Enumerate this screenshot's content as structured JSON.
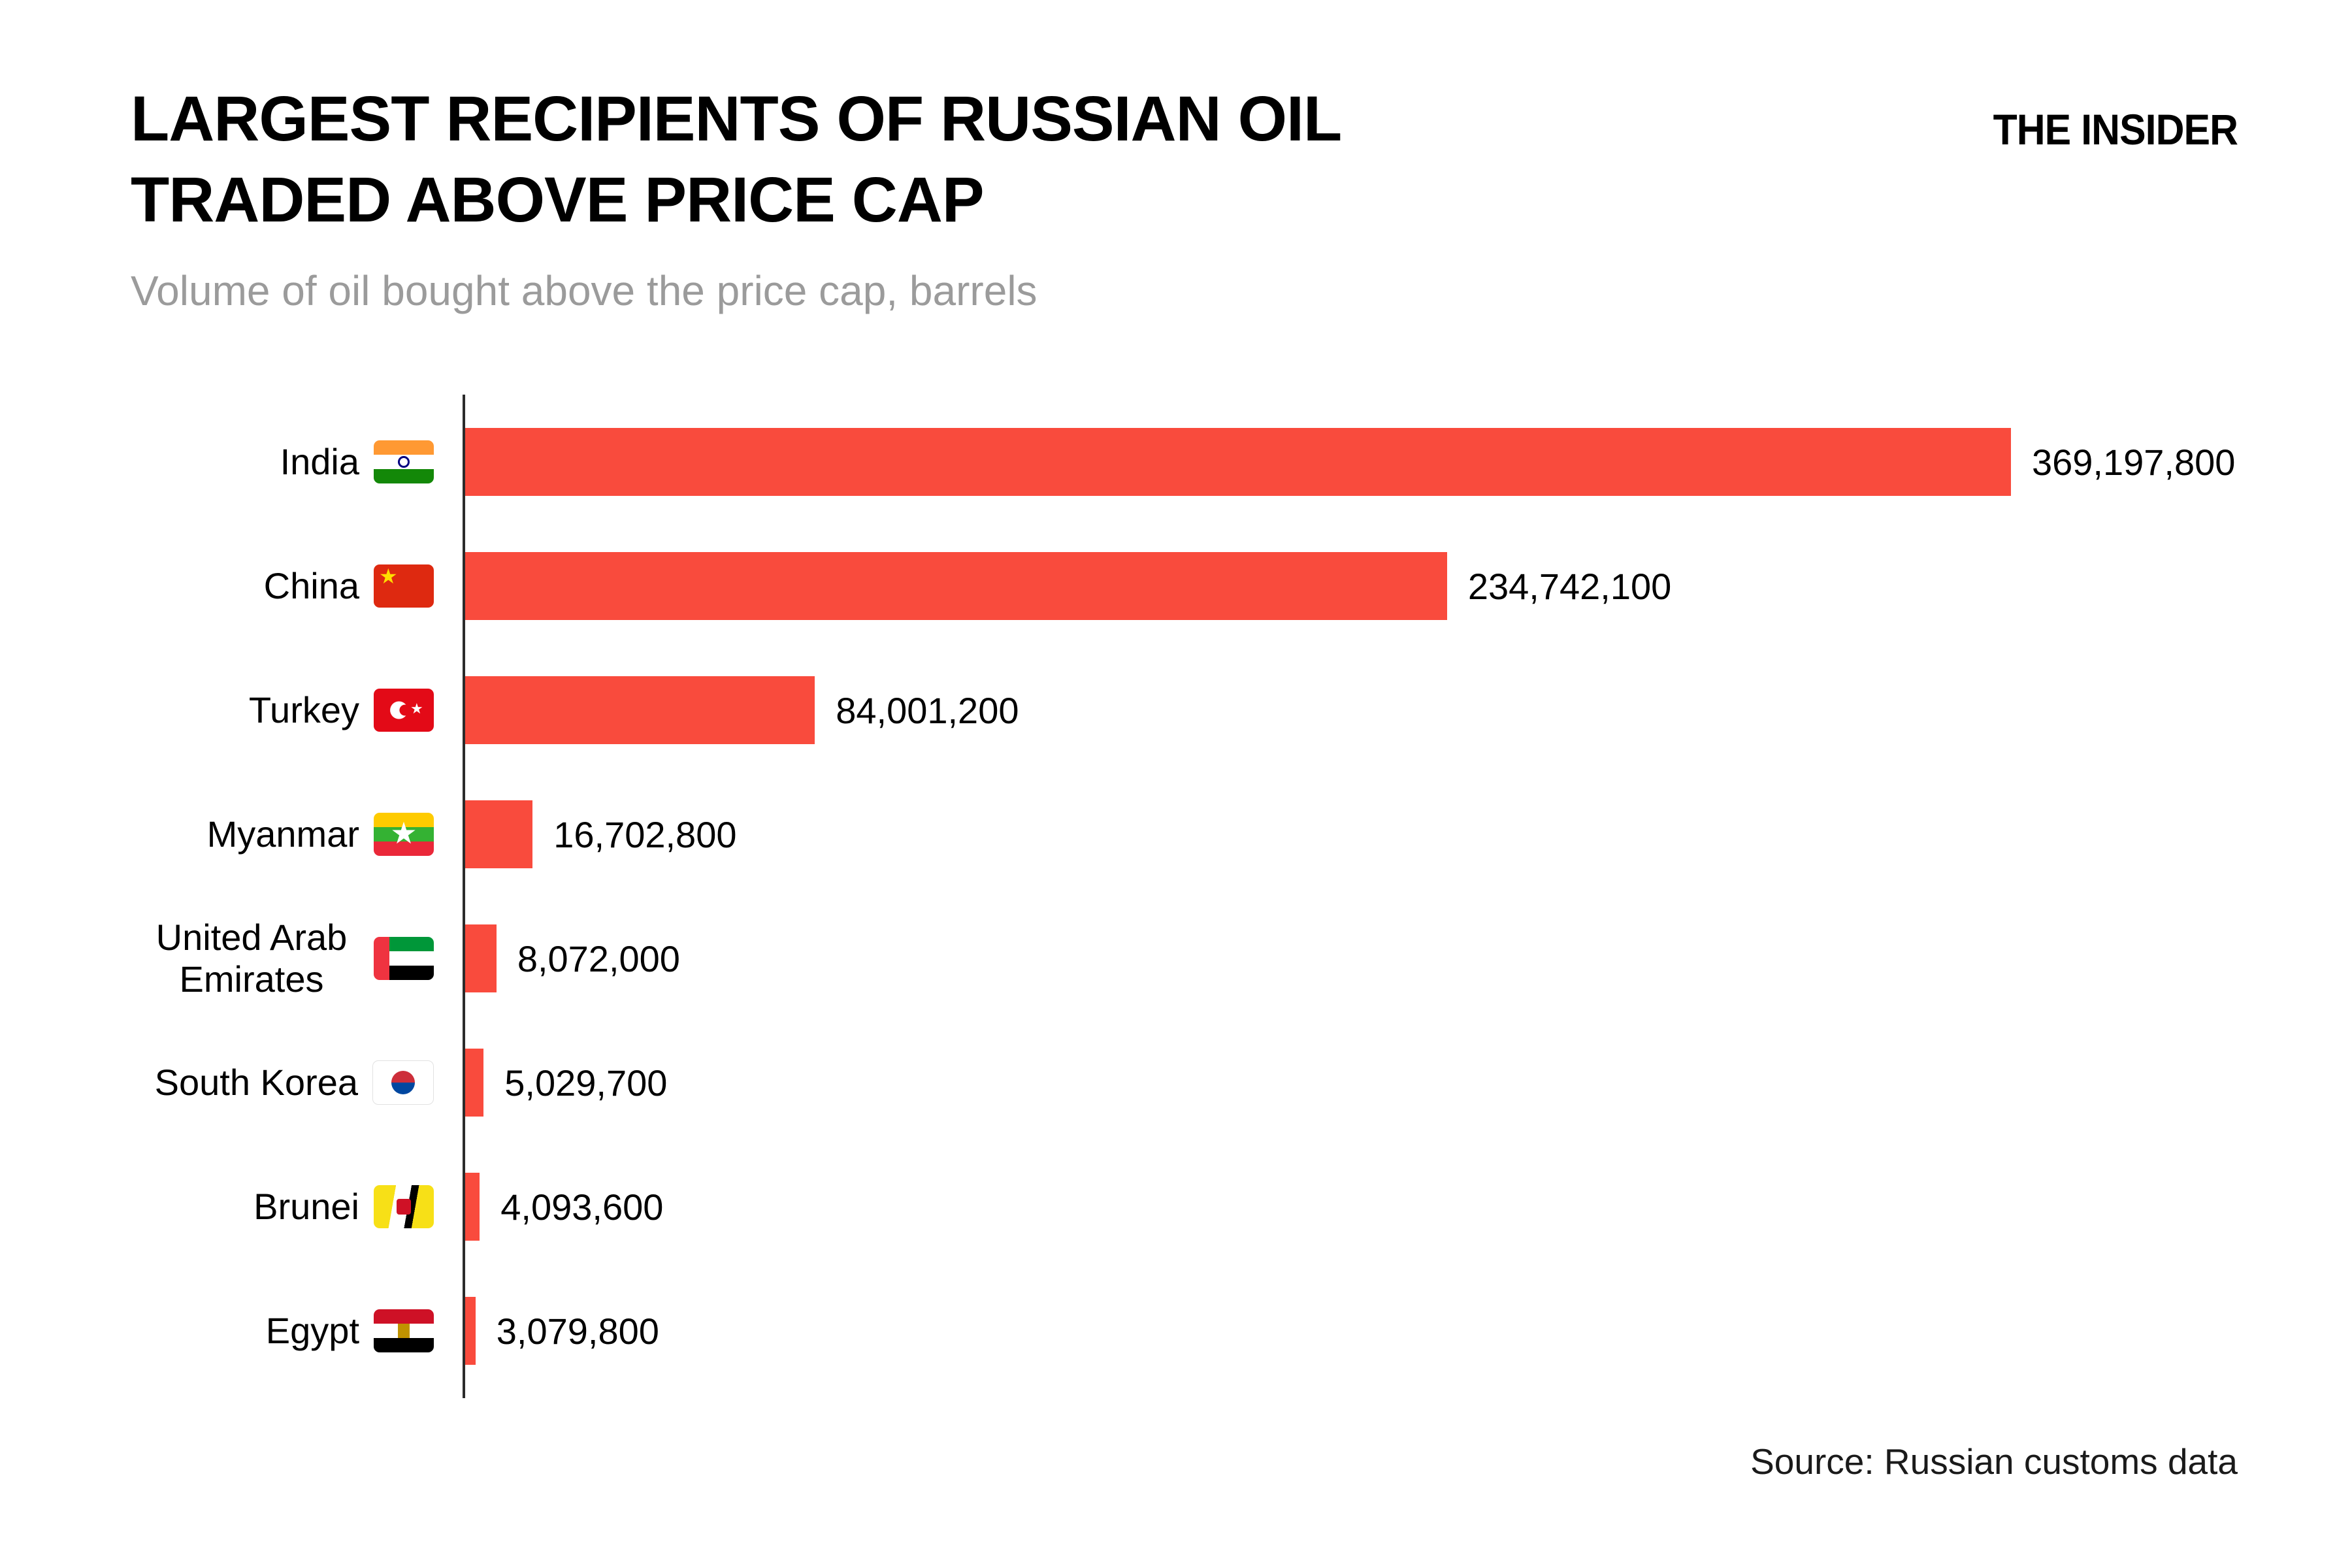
{
  "header": {
    "title_line1": "LARGEST RECIPIENTS OF RUSSIAN OIL",
    "title_line2": "TRADED ABOVE PRICE CAP",
    "subtitle": "Volume of oil bought above the price cap, barrels",
    "brand": "THE INSIDER"
  },
  "footer": {
    "source": "Source: Russian customs data"
  },
  "chart_data": {
    "type": "bar",
    "orientation": "horizontal",
    "title": "LARGEST RECIPIENTS OF RUSSIAN OIL TRADED ABOVE PRICE CAP",
    "subtitle": "Volume of oil bought above the price cap, barrels",
    "bar_color": "#f94b3d",
    "axis_color": "#2b2b2b",
    "xlim": [
      0,
      380000000
    ],
    "grid": false,
    "legend": false,
    "categories": [
      "India",
      "China",
      "Turkey",
      "Myanmar",
      "United Arab Emirates",
      "South Korea",
      "Brunei",
      "Egypt"
    ],
    "values": [
      369197800,
      234742100,
      84001200,
      16702800,
      8072000,
      5029700,
      4093600,
      3079800
    ],
    "value_labels": [
      "369,197,800",
      "234,742,100",
      "84,001,200",
      "16,702,800",
      "8,072,000",
      "5,029,700",
      "4,093,600",
      "3,079,800"
    ],
    "flags": [
      "india",
      "china",
      "turkey",
      "myanmar",
      "uae",
      "south-korea",
      "brunei",
      "egypt"
    ],
    "source": "Source: Russian customs data"
  }
}
